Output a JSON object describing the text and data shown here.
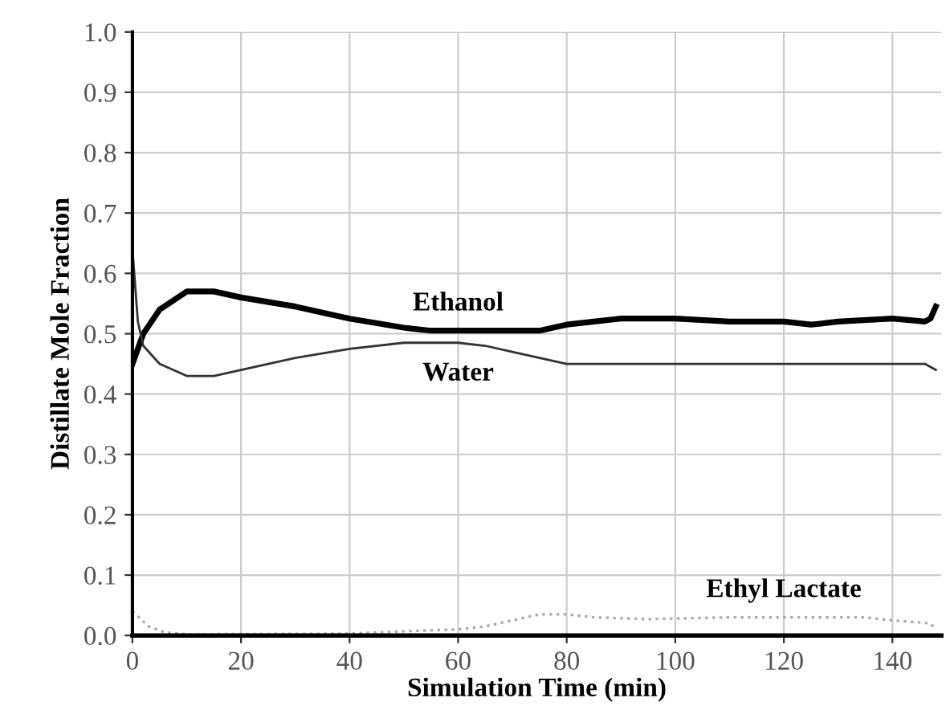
{
  "chart_data": {
    "type": "line",
    "xlabel": "Simulation Time (min)",
    "ylabel": "Distillate Mole Fraction",
    "xlim": [
      0,
      149
    ],
    "ylim": [
      0,
      1
    ],
    "xticks": [
      0,
      20,
      40,
      60,
      80,
      100,
      120,
      140
    ],
    "yticks": [
      {
        "value": 0,
        "label": "0.0"
      },
      {
        "value": 0.1,
        "label": "0.1"
      },
      {
        "value": 0.2,
        "label": "0.2"
      },
      {
        "value": 0.3,
        "label": "0.3"
      },
      {
        "value": 0.4,
        "label": "0.4"
      },
      {
        "value": 0.5,
        "label": "0.5"
      },
      {
        "value": 0.6,
        "label": "0.6"
      },
      {
        "value": 0.7,
        "label": "0.7"
      },
      {
        "value": 0.8,
        "label": "0.8"
      },
      {
        "value": 0.9,
        "label": "0.9"
      },
      {
        "value": 1,
        "label": "1.0"
      }
    ],
    "grid": true,
    "marker": "none",
    "series": [
      {
        "name": "Ethanol",
        "color": "#000000",
        "line_style": "solid",
        "x": [
          0,
          2,
          5,
          10,
          15,
          20,
          30,
          40,
          50,
          55,
          60,
          70,
          75,
          80,
          85,
          90,
          100,
          110,
          120,
          125,
          130,
          140,
          146,
          147,
          148
        ],
        "values": [
          0.45,
          0.5,
          0.54,
          0.57,
          0.57,
          0.56,
          0.545,
          0.525,
          0.51,
          0.505,
          0.505,
          0.505,
          0.505,
          0.515,
          0.52,
          0.525,
          0.525,
          0.52,
          0.52,
          0.515,
          0.52,
          0.525,
          0.52,
          0.525,
          0.545
        ]
      },
      {
        "name": "Water",
        "color": "#333333",
        "line_style": "solid",
        "x": [
          0,
          1,
          2,
          5,
          10,
          15,
          20,
          30,
          40,
          50,
          60,
          65,
          70,
          75,
          80,
          90,
          100,
          110,
          120,
          130,
          140,
          146,
          148
        ],
        "values": [
          0.64,
          0.52,
          0.48,
          0.45,
          0.43,
          0.43,
          0.44,
          0.46,
          0.475,
          0.485,
          0.485,
          0.48,
          0.47,
          0.46,
          0.45,
          0.45,
          0.45,
          0.45,
          0.45,
          0.45,
          0.45,
          0.45,
          0.44
        ]
      },
      {
        "name": "Ethyl Lactate",
        "color": "#aaaaaa",
        "line_style": "dotted",
        "x": [
          0,
          3,
          6,
          10,
          40,
          50,
          60,
          65,
          70,
          75,
          80,
          85,
          95,
          110,
          120,
          135,
          140,
          147,
          148
        ],
        "values": [
          0.04,
          0.015,
          0.005,
          0.002,
          0.003,
          0.007,
          0.01,
          0.015,
          0.025,
          0.035,
          0.035,
          0.03,
          0.027,
          0.03,
          0.03,
          0.03,
          0.025,
          0.02,
          0.01
        ]
      }
    ]
  }
}
